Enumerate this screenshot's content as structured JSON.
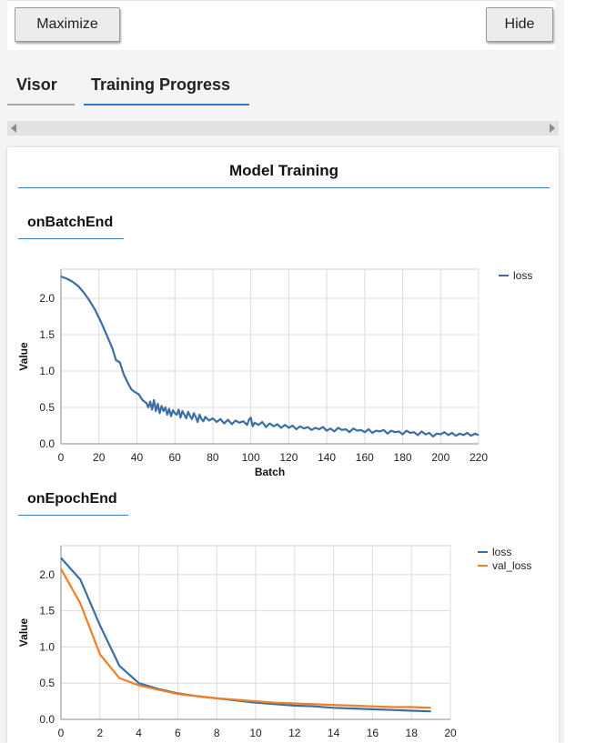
{
  "toolbar": {
    "maximize_label": "Maximize",
    "hide_label": "Hide"
  },
  "tabs": [
    {
      "label": "Visor"
    },
    {
      "label": "Training Progress"
    }
  ],
  "panel": {
    "title": "Model Training",
    "sections": [
      {
        "title": "onBatchEnd"
      },
      {
        "title": "onEpochEnd"
      }
    ]
  },
  "colors": {
    "loss": "#3a6ea5",
    "val_loss": "#f07e26",
    "accent": "#3a78c2"
  },
  "chart_data": [
    {
      "type": "line",
      "title": "",
      "xlabel": "Batch",
      "ylabel": "Value",
      "xlim": [
        0,
        220
      ],
      "ylim": [
        0,
        2.4
      ],
      "xticks": [
        0,
        20,
        40,
        60,
        80,
        100,
        120,
        140,
        160,
        180,
        200,
        220
      ],
      "yticks": [
        0.0,
        0.5,
        1.0,
        1.5,
        2.0
      ],
      "grid": true,
      "legend": "top-right",
      "series": [
        {
          "name": "loss",
          "x": [
            0,
            3,
            6,
            9,
            12,
            15,
            18,
            21,
            24,
            27,
            29,
            31,
            33,
            35,
            37,
            39,
            41,
            43,
            45,
            46,
            47,
            48,
            49,
            50,
            51,
            52,
            53,
            54,
            55,
            56,
            57,
            58,
            59,
            60,
            61,
            62,
            63,
            64,
            65,
            66,
            67,
            68,
            69,
            70,
            71,
            72,
            73,
            74,
            75,
            76,
            78,
            80,
            82,
            84,
            86,
            88,
            90,
            92,
            94,
            96,
            98,
            99,
            100,
            101,
            102,
            104,
            106,
            108,
            110,
            112,
            114,
            116,
            118,
            120,
            122,
            124,
            126,
            128,
            130,
            132,
            134,
            136,
            138,
            140,
            142,
            144,
            146,
            148,
            150,
            152,
            154,
            156,
            158,
            160,
            162,
            164,
            166,
            168,
            170,
            172,
            174,
            176,
            178,
            180,
            182,
            184,
            186,
            188,
            190,
            192,
            194,
            196,
            198,
            200,
            202,
            204,
            206,
            208,
            210,
            212,
            214,
            216,
            218,
            220
          ],
          "y": [
            2.3,
            2.27,
            2.23,
            2.17,
            2.08,
            1.97,
            1.84,
            1.68,
            1.5,
            1.32,
            1.15,
            1.12,
            0.96,
            0.85,
            0.75,
            0.71,
            0.68,
            0.6,
            0.56,
            0.5,
            0.58,
            0.47,
            0.6,
            0.45,
            0.55,
            0.42,
            0.52,
            0.45,
            0.5,
            0.4,
            0.48,
            0.38,
            0.46,
            0.42,
            0.4,
            0.47,
            0.36,
            0.45,
            0.4,
            0.35,
            0.44,
            0.38,
            0.34,
            0.42,
            0.37,
            0.3,
            0.4,
            0.34,
            0.31,
            0.37,
            0.32,
            0.35,
            0.3,
            0.34,
            0.28,
            0.33,
            0.27,
            0.32,
            0.29,
            0.31,
            0.26,
            0.33,
            0.36,
            0.24,
            0.29,
            0.26,
            0.3,
            0.23,
            0.28,
            0.24,
            0.27,
            0.22,
            0.26,
            0.22,
            0.25,
            0.2,
            0.24,
            0.21,
            0.23,
            0.19,
            0.22,
            0.2,
            0.23,
            0.18,
            0.21,
            0.17,
            0.22,
            0.19,
            0.2,
            0.16,
            0.21,
            0.18,
            0.19,
            0.16,
            0.2,
            0.15,
            0.18,
            0.17,
            0.19,
            0.14,
            0.18,
            0.16,
            0.17,
            0.13,
            0.18,
            0.15,
            0.16,
            0.12,
            0.17,
            0.13,
            0.15,
            0.1,
            0.14,
            0.13,
            0.16,
            0.12,
            0.15,
            0.11,
            0.14,
            0.12,
            0.15,
            0.11,
            0.14,
            0.12
          ]
        }
      ]
    },
    {
      "type": "line",
      "title": "",
      "xlabel": "",
      "ylabel": "Value",
      "xlim": [
        0,
        20
      ],
      "ylim": [
        0,
        2.4
      ],
      "xticks": [
        0,
        2,
        4,
        6,
        8,
        10,
        12,
        14,
        16,
        18,
        20
      ],
      "yticks": [
        0.0,
        0.5,
        1.0,
        1.5,
        2.0
      ],
      "grid": true,
      "legend": "top-right",
      "series": [
        {
          "name": "loss",
          "x": [
            0,
            1,
            2,
            3,
            4,
            5,
            6,
            7,
            8,
            9,
            10,
            11,
            12,
            13,
            14,
            15,
            16,
            17,
            18,
            19
          ],
          "y": [
            2.23,
            1.93,
            1.3,
            0.74,
            0.5,
            0.42,
            0.36,
            0.32,
            0.29,
            0.26,
            0.23,
            0.21,
            0.19,
            0.18,
            0.16,
            0.15,
            0.14,
            0.13,
            0.12,
            0.11
          ]
        },
        {
          "name": "val_loss",
          "x": [
            0,
            1,
            2,
            3,
            4,
            5,
            6,
            7,
            8,
            9,
            10,
            11,
            12,
            13,
            14,
            15,
            16,
            17,
            18,
            19
          ],
          "y": [
            2.08,
            1.6,
            0.9,
            0.57,
            0.47,
            0.41,
            0.35,
            0.32,
            0.29,
            0.27,
            0.25,
            0.23,
            0.22,
            0.21,
            0.2,
            0.19,
            0.18,
            0.17,
            0.17,
            0.16
          ]
        }
      ]
    }
  ]
}
